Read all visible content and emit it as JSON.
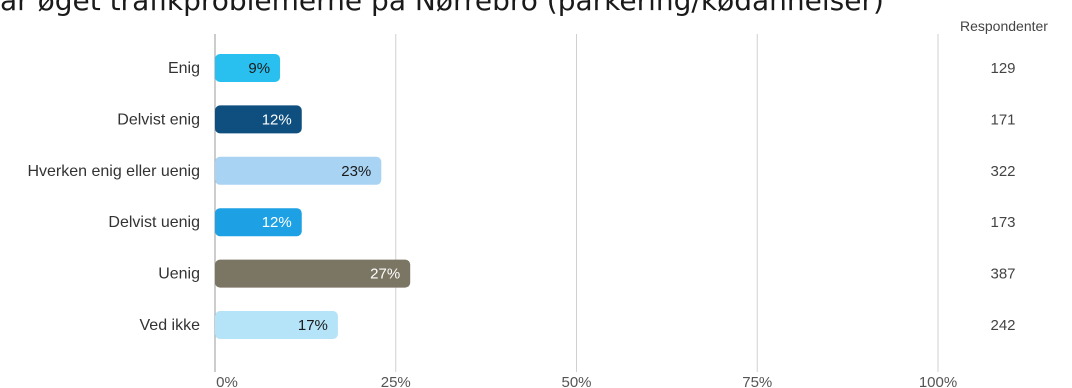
{
  "title": "ar øget trafikproblemerne på Nørrebro (parkering/kødannelser)",
  "respondents_header": "Respondenter",
  "chart_data": {
    "type": "bar",
    "orientation": "horizontal",
    "categories": [
      "Enig",
      "Delvist enig",
      "Hverken enig eller uenig",
      "Delvist uenig",
      "Uenig",
      "Ved ikke"
    ],
    "values": [
      9,
      12,
      23,
      12,
      27,
      17
    ],
    "value_labels": [
      "9%",
      "12%",
      "23%",
      "12%",
      "27%",
      "17%"
    ],
    "respondents": [
      "129",
      "171",
      "322",
      "173",
      "387",
      "242"
    ],
    "bar_colors": [
      "#29c0ef",
      "#0e4f80",
      "#a9d3f3",
      "#1da1e4",
      "#7b7563",
      "#b5e3f8"
    ],
    "label_colors": [
      "#1a1a1a",
      "#ffffff",
      "#1a1a1a",
      "#ffffff",
      "#ffffff",
      "#1a1a1a"
    ],
    "xticks": [
      "0%",
      "25%",
      "50%",
      "75%",
      "100%"
    ],
    "xtick_values": [
      0,
      25,
      50,
      75,
      100
    ],
    "xlim": [
      0,
      100
    ],
    "grid": true
  }
}
